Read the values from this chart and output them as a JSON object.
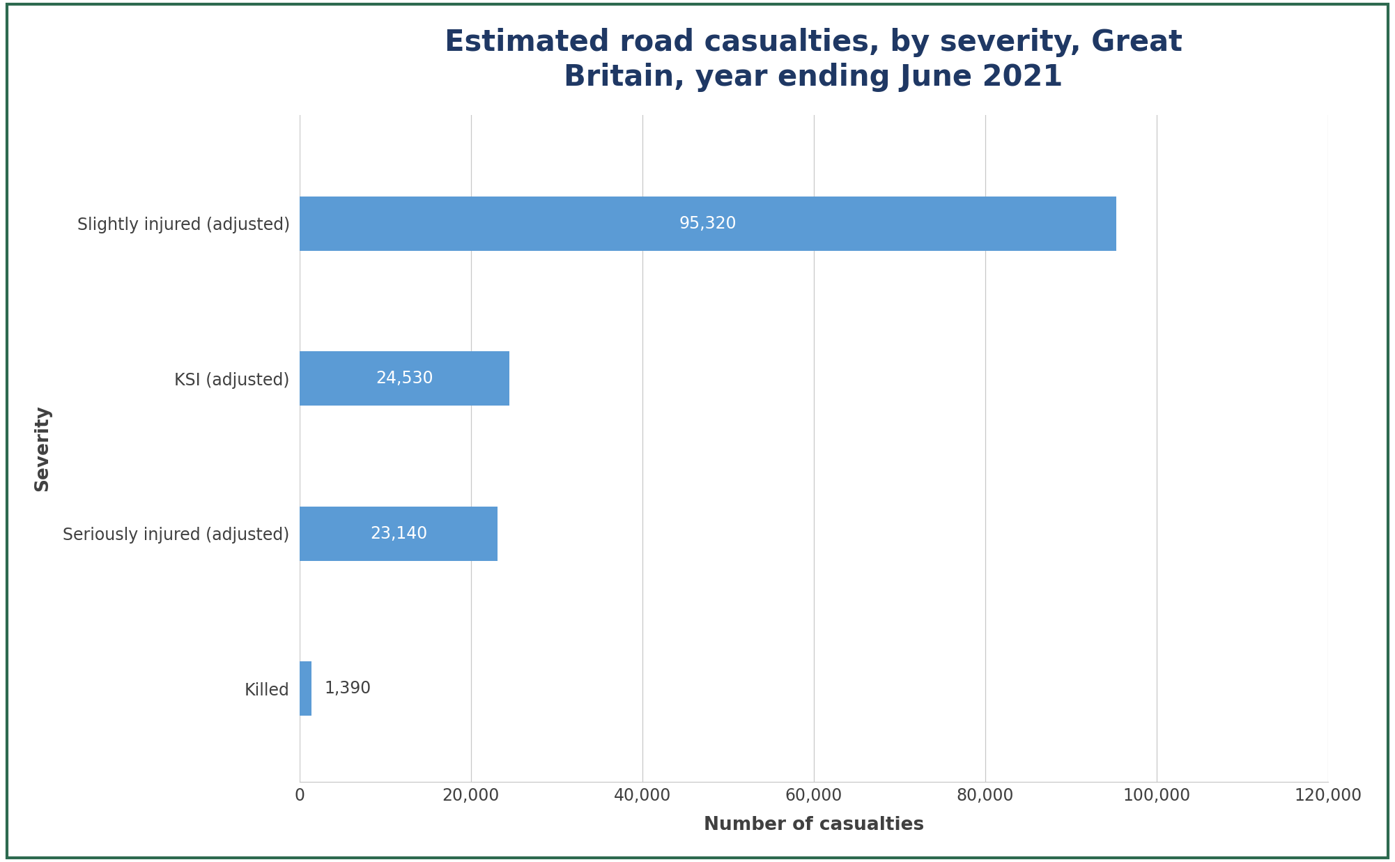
{
  "title": "Estimated road casualties, by severity, Great\nBritain, year ending June 2021",
  "categories": [
    "Slightly injured (adjusted)",
    "KSI (adjusted)",
    "Seriously injured (adjusted)",
    "Killed"
  ],
  "values": [
    95320,
    24530,
    23140,
    1390
  ],
  "bar_color": "#5b9bd5",
  "bar_labels": [
    "95,320",
    "24,530",
    "23,140",
    "1,390"
  ],
  "xlabel": "Number of casualties",
  "ylabel": "Severity",
  "xlim": [
    0,
    120000
  ],
  "xticks": [
    0,
    20000,
    40000,
    60000,
    80000,
    100000,
    120000
  ],
  "xtick_labels": [
    "0",
    "20,000",
    "40,000",
    "60,000",
    "80,000",
    "100,000",
    "120,000"
  ],
  "title_color": "#1f3864",
  "label_color": "#404040",
  "bar_label_color": "#404040",
  "background_color": "#ffffff",
  "grid_color": "#c8c8c8",
  "title_fontsize": 30,
  "axis_label_fontsize": 19,
  "tick_fontsize": 17,
  "bar_label_fontsize": 17,
  "ylabel_fontsize": 19,
  "bar_height": 0.35,
  "border_color": "#2d6a4f",
  "label_outside_threshold": 5000
}
